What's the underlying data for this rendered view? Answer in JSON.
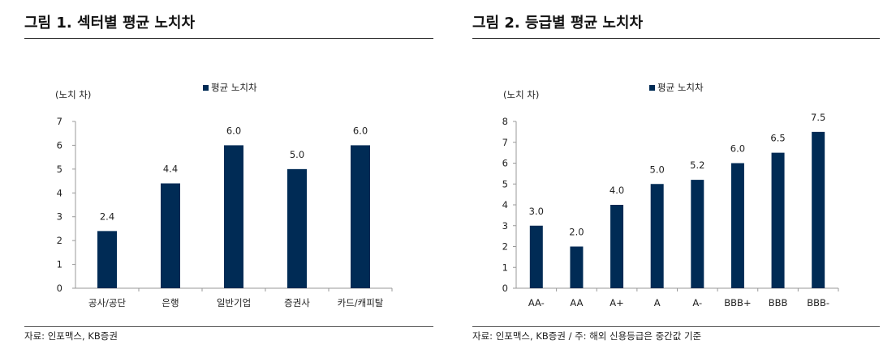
{
  "figures": [
    {
      "title": "그림 1. 섹터별 평균 노치차",
      "source": "자료: 인포맥스, KB증권"
    },
    {
      "title": "그림 2. 등급별 평균 노치차",
      "source": "자료: 인포맥스, KB증권 / 주: 해외 신용등급은 중간값 기준"
    }
  ],
  "chart_data": [
    {
      "type": "bar",
      "title": "그림 1. 섹터별 평균 노치차",
      "ylabel": "(노치 차)",
      "xlabel": "",
      "categories": [
        "공사/공단",
        "은행",
        "일반기업",
        "증권사",
        "카드/캐피탈"
      ],
      "series": [
        {
          "name": "평균 노치차",
          "values": [
            2.4,
            4.4,
            6.0,
            5.0,
            6.0
          ],
          "color": "#002b55"
        }
      ],
      "data_labels": [
        "2.4",
        "4.4",
        "6.0",
        "5.0",
        "6.0"
      ],
      "ylim": [
        0,
        7
      ],
      "yticks": [
        0,
        1,
        2,
        3,
        4,
        5,
        6,
        7
      ],
      "legend": "top-center",
      "grid": false
    },
    {
      "type": "bar",
      "title": "그림 2. 등급별 평균 노치차",
      "ylabel": "(노치 차)",
      "xlabel": "",
      "categories": [
        "AA-",
        "AA",
        "A+",
        "A",
        "A-",
        "BBB+",
        "BBB",
        "BBB-"
      ],
      "series": [
        {
          "name": "평균 노치차",
          "values": [
            3.0,
            2.0,
            4.0,
            5.0,
            5.2,
            6.0,
            6.5,
            7.5
          ],
          "color": "#002b55"
        }
      ],
      "data_labels": [
        "3.0",
        "2.0",
        "4.0",
        "5.0",
        "5.2",
        "6.0",
        "6.5",
        "7.5"
      ],
      "ylim": [
        0,
        8
      ],
      "yticks": [
        0,
        1,
        2,
        3,
        4,
        5,
        6,
        7,
        8
      ],
      "legend": "top-center",
      "grid": false
    }
  ]
}
